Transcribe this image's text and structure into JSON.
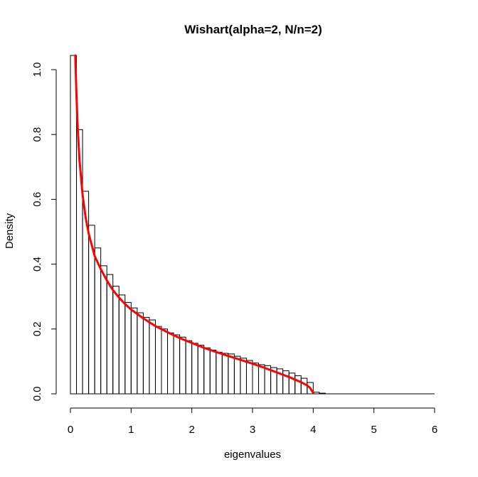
{
  "chart_data": {
    "type": "bar",
    "title": "Wishart(alpha=2, N/n=2)",
    "xlabel": "eigenvalues",
    "ylabel": "Density",
    "xlim": [
      0,
      6
    ],
    "ylim": [
      0,
      1.0
    ],
    "x_ticks": [
      "0",
      "1",
      "2",
      "3",
      "4",
      "5",
      "6"
    ],
    "y_ticks": [
      "0.0",
      "0.2",
      "0.4",
      "0.6",
      "0.8",
      "1.0"
    ],
    "histogram": {
      "bin_width": 0.1,
      "start": 0.0,
      "densities": [
        1.09,
        0.815,
        0.625,
        0.52,
        0.45,
        0.395,
        0.368,
        0.332,
        0.305,
        0.282,
        0.265,
        0.25,
        0.236,
        0.228,
        0.208,
        0.2,
        0.188,
        0.182,
        0.175,
        0.164,
        0.156,
        0.15,
        0.142,
        0.135,
        0.128,
        0.125,
        0.123,
        0.116,
        0.11,
        0.103,
        0.095,
        0.09,
        0.087,
        0.081,
        0.077,
        0.071,
        0.064,
        0.056,
        0.048,
        0.035,
        0.005,
        0.002
      ],
      "color": "#000000"
    },
    "density_curve": {
      "color": "#ff0000",
      "x": [
        0.08,
        0.1,
        0.12,
        0.15,
        0.2,
        0.25,
        0.3,
        0.4,
        0.5,
        0.6,
        0.7,
        0.8,
        0.9,
        1.0,
        1.2,
        1.4,
        1.6,
        1.8,
        2.0,
        2.2,
        2.4,
        2.6,
        2.8,
        3.0,
        3.2,
        3.4,
        3.6,
        3.7,
        3.8,
        3.9,
        3.95,
        4.0
      ],
      "y": [
        1.05,
        0.92,
        0.82,
        0.72,
        0.615,
        0.545,
        0.495,
        0.425,
        0.385,
        0.35,
        0.32,
        0.297,
        0.277,
        0.26,
        0.233,
        0.209,
        0.19,
        0.172,
        0.157,
        0.142,
        0.129,
        0.117,
        0.105,
        0.093,
        0.08,
        0.066,
        0.052,
        0.044,
        0.036,
        0.026,
        0.018,
        0.003
      ]
    }
  }
}
